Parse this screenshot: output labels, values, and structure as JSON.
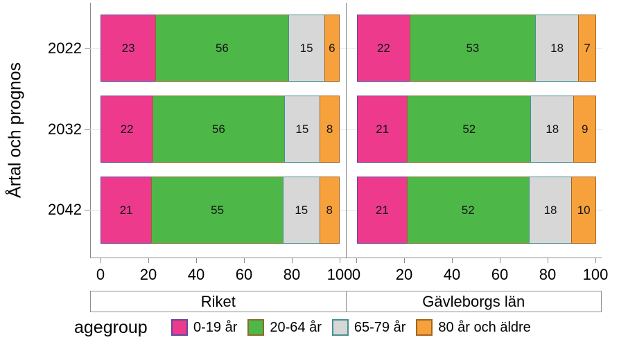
{
  "figure": {
    "background": "#ffffff",
    "axis_color": "#8a8a8a",
    "grid_color": "#e4e4e4",
    "text_color": "#000000"
  },
  "chart_data": {
    "type": "bar",
    "orientation": "horizontal",
    "stacked": true,
    "ylabel": "Årtal och prognos",
    "legend_title": "agegroup",
    "categories": [
      "2022",
      "2032",
      "2042"
    ],
    "x_ticks": [
      "0",
      "20",
      "40",
      "60",
      "80",
      "100"
    ],
    "xlim": [
      0,
      100
    ],
    "series": [
      {
        "label": "0-19 år",
        "fill": "#ee3a8c",
        "stroke": "#5c4a9f"
      },
      {
        "label": "20-64 år",
        "fill": "#4db748",
        "stroke": "#8a6d28"
      },
      {
        "label": "65-79 år",
        "fill": "#d7d7d7",
        "stroke": "#45918f"
      },
      {
        "label": "80 år och äldre",
        "fill": "#f7a13c",
        "stroke": "#a26522"
      }
    ],
    "panels": [
      {
        "label": "Riket",
        "rows": [
          {
            "category": "2022",
            "values": [
              23,
              56,
              15,
              6
            ]
          },
          {
            "category": "2032",
            "values": [
              22,
              56,
              15,
              8
            ]
          },
          {
            "category": "2042",
            "values": [
              21,
              55,
              15,
              8
            ]
          }
        ]
      },
      {
        "label": "Gävleborgs län",
        "rows": [
          {
            "category": "2022",
            "values": [
              22,
              53,
              18,
              7
            ]
          },
          {
            "category": "2032",
            "values": [
              21,
              52,
              18,
              9
            ]
          },
          {
            "category": "2042",
            "values": [
              21,
              52,
              18,
              10
            ]
          }
        ]
      }
    ]
  }
}
